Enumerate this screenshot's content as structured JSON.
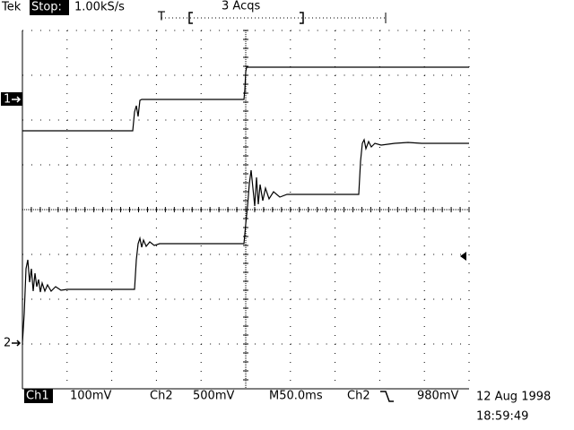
{
  "header": {
    "brand": "Tek",
    "status": "Stop:",
    "rate": "1.00kS/s",
    "trigger_marker": "T",
    "acquisitions": "3 Acqs"
  },
  "markers": {
    "ch1": "1",
    "ch2": "2"
  },
  "footer": {
    "ch1_label": "Ch1",
    "ch1_scale": "100mV",
    "ch2_label": "Ch2",
    "ch2_scale": "500mV",
    "timebase": "M50.0ms",
    "trigger_source": "Ch2",
    "trigger_level": "980mV",
    "date": "12 Aug 1998",
    "time": "18:59:49"
  }
}
